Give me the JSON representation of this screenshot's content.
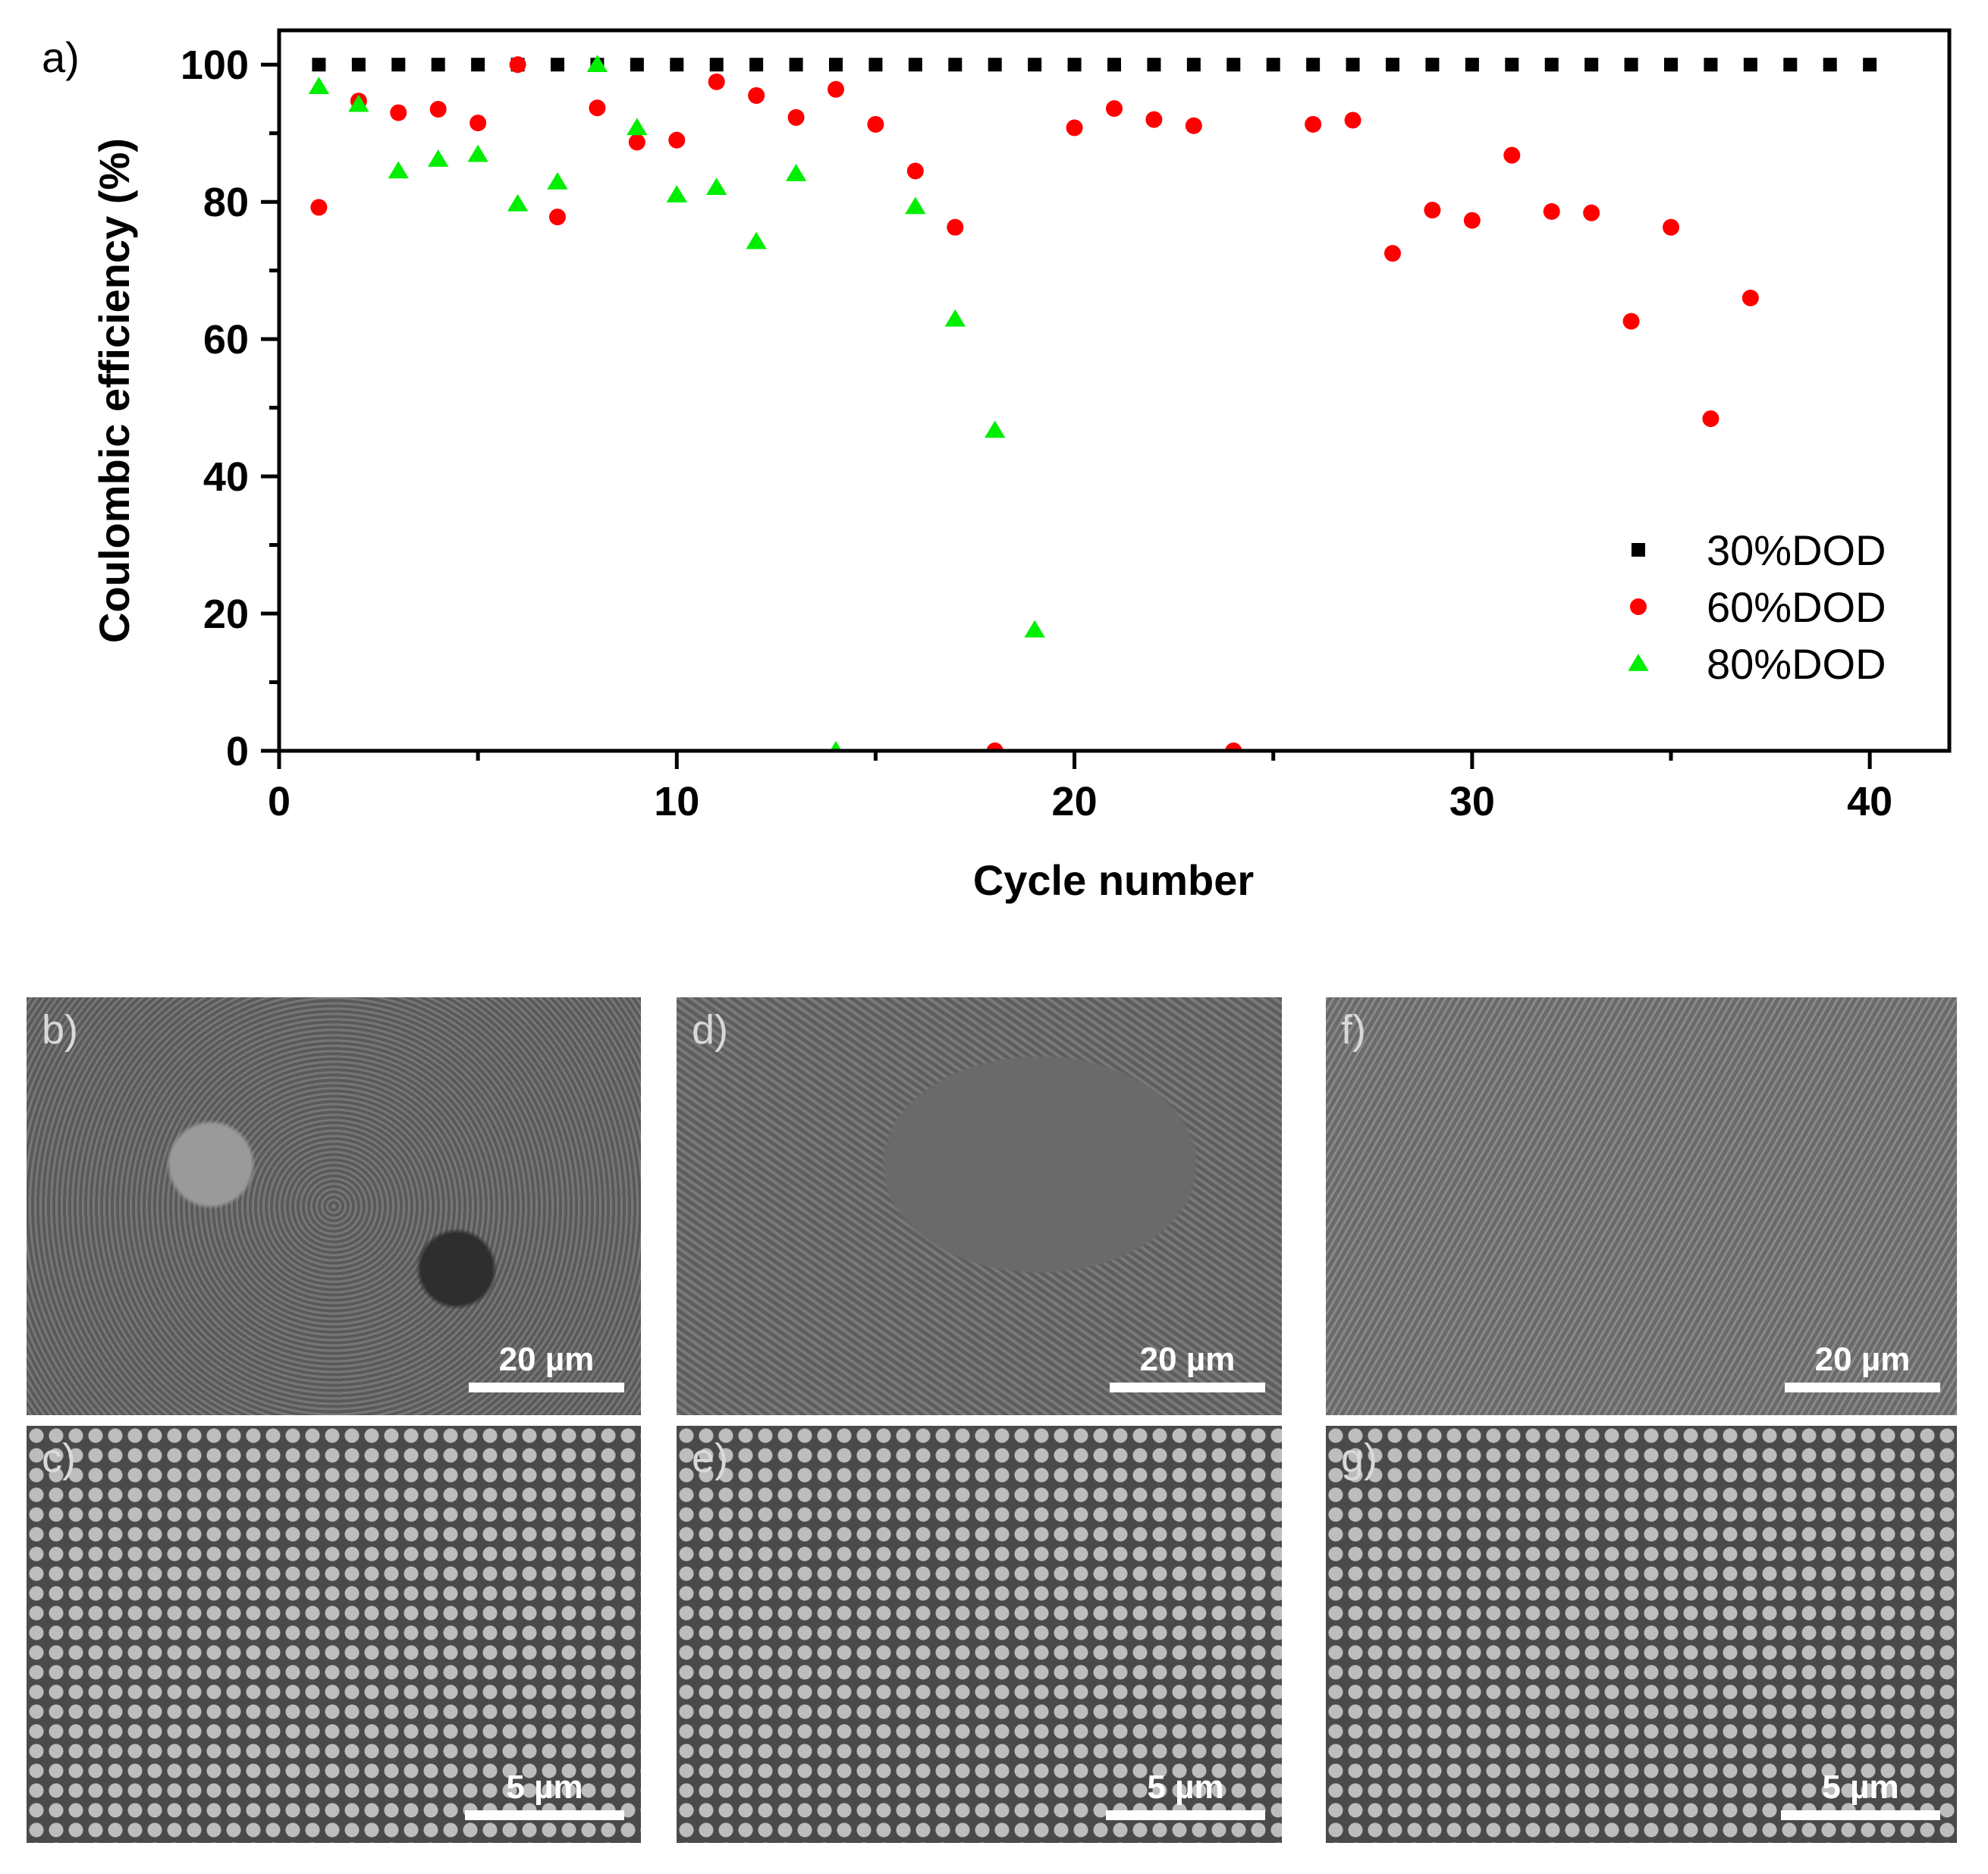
{
  "chart_data": {
    "type": "scatter",
    "panel_label": "a)",
    "xlabel": "Cycle number",
    "ylabel": "Coulombic efficiency (%)",
    "xlim": [
      0,
      42
    ],
    "ylim": [
      0,
      105
    ],
    "x_ticks": [
      0,
      10,
      20,
      30,
      40
    ],
    "y_ticks": [
      0,
      20,
      40,
      60,
      80,
      100
    ],
    "legend_position": "bottom-right",
    "grid": false,
    "series": [
      {
        "name": "30%DOD",
        "marker": "square",
        "color": "#000000",
        "x": [
          1,
          2,
          3,
          4,
          5,
          6,
          7,
          8,
          9,
          10,
          11,
          12,
          13,
          14,
          15,
          16,
          17,
          18,
          19,
          20,
          21,
          22,
          23,
          24,
          25,
          26,
          27,
          28,
          29,
          30,
          31,
          32,
          33,
          34,
          35,
          36,
          37,
          38,
          39,
          40
        ],
        "y": [
          100,
          100,
          100,
          100,
          100,
          100,
          100,
          100,
          100,
          100,
          100,
          100,
          100,
          100,
          100,
          100,
          100,
          100,
          100,
          100,
          100,
          100,
          100,
          100,
          100,
          100,
          100,
          100,
          100,
          100,
          100,
          100,
          100,
          100,
          100,
          100,
          100,
          100,
          100,
          100
        ]
      },
      {
        "name": "60%DOD",
        "marker": "circle",
        "color": "#ff0000",
        "x": [
          1,
          2,
          3,
          4,
          5,
          6,
          7,
          8,
          9,
          10,
          11,
          12,
          13,
          14,
          15,
          16,
          17,
          18,
          20,
          21,
          22,
          23,
          24,
          26,
          27,
          28,
          29,
          30,
          31,
          32,
          33,
          34,
          35,
          36,
          37
        ],
        "y": [
          79.2,
          94.7,
          93,
          93.5,
          91.5,
          100,
          77.8,
          93.7,
          88.7,
          89,
          97.5,
          95.5,
          92.3,
          96.4,
          91.3,
          84.5,
          76.3,
          0,
          90.8,
          93.6,
          92,
          91.1,
          0,
          91.3,
          91.9,
          72.5,
          78.8,
          77.3,
          86.8,
          78.6,
          78.4,
          62.6,
          76.3,
          48.4,
          66
        ]
      },
      {
        "name": "80%DOD",
        "marker": "triangle",
        "color": "#00ee00",
        "x": [
          1,
          2,
          3,
          4,
          5,
          6,
          7,
          8,
          9,
          10,
          11,
          12,
          13,
          14,
          16,
          17,
          18,
          19
        ],
        "y": [
          96.8,
          94.2,
          84.5,
          86.2,
          86.9,
          79.7,
          82.9,
          100,
          90.8,
          81,
          82.1,
          74.2,
          84.1,
          0,
          79.3,
          62.9,
          46.7,
          17.6
        ]
      }
    ]
  },
  "sem_panels": [
    {
      "label": "b)",
      "scale": "20 µm"
    },
    {
      "label": "d)",
      "scale": "20 µm"
    },
    {
      "label": "f)",
      "scale": "20 µm"
    },
    {
      "label": "c)",
      "scale": "5 µm"
    },
    {
      "label": "e)",
      "scale": "5 µm"
    },
    {
      "label": "g)",
      "scale": "5 µm"
    }
  ]
}
